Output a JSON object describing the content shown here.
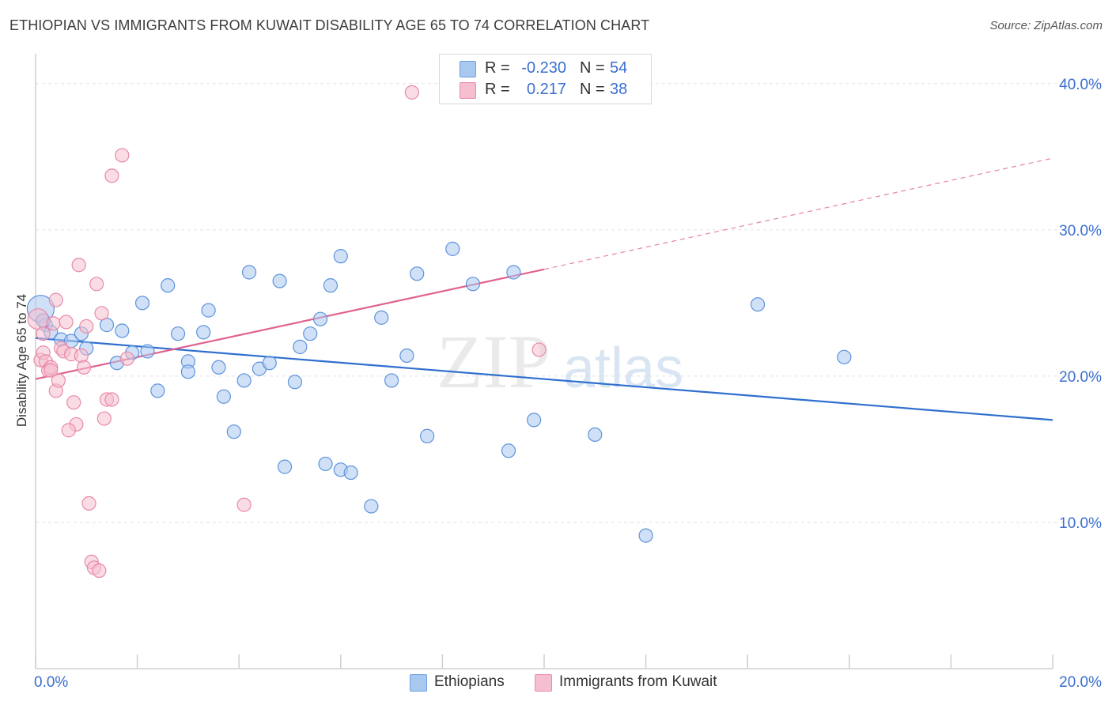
{
  "title": "ETHIOPIAN VS IMMIGRANTS FROM KUWAIT DISABILITY AGE 65 TO 74 CORRELATION CHART",
  "source": "Source: ZipAtlas.com",
  "watermark": {
    "zip": "ZIP",
    "atlas": "atlas"
  },
  "legend": {
    "rows": [
      {
        "r_label": "R =",
        "r_value": "-0.230",
        "n_label": "N =",
        "n_value": "54",
        "color": "#a9c8f0",
        "border": "#6d9fe0"
      },
      {
        "r_label": "R =",
        "r_value": "0.217",
        "n_label": "N =",
        "n_value": "38",
        "color": "#f6bfd0",
        "border": "#e98aa9"
      }
    ]
  },
  "colors": {
    "blue_fill": "#a9c8f0",
    "blue_stroke": "#5e93dc",
    "blue_line": "#2f6fce",
    "pink_fill": "#f6bfd0",
    "pink_stroke": "#e88aa8",
    "pink_line": "#e0628e",
    "tick_label": "#3b6fd0",
    "grid": "#e2e2e2"
  },
  "chart_data": {
    "type": "scatter",
    "title": "ETHIOPIAN VS IMMIGRANTS FROM KUWAIT DISABILITY AGE 65 TO 74 CORRELATION CHART",
    "xlabel": "",
    "ylabel": "Disability Age 65 to 74",
    "xlim": [
      0,
      20
    ],
    "ylim": [
      0,
      41.5
    ],
    "x_tick_labels": [
      "0.0%",
      "20.0%"
    ],
    "y_ticks": [
      10,
      20,
      30,
      40
    ],
    "y_tick_labels": [
      "10.0%",
      "20.0%",
      "30.0%",
      "40.0%"
    ],
    "grid": true,
    "legend_position": "bottom",
    "series": [
      {
        "name": "Ethiopians",
        "points": [
          [
            0.1,
            24.6
          ],
          [
            0.2,
            23.5
          ],
          [
            0.3,
            23.0
          ],
          [
            0.5,
            22.5
          ],
          [
            0.7,
            22.4
          ],
          [
            0.9,
            22.9
          ],
          [
            1.0,
            21.9
          ],
          [
            1.4,
            23.5
          ],
          [
            1.7,
            23.1
          ],
          [
            1.6,
            20.9
          ],
          [
            1.9,
            21.6
          ],
          [
            2.2,
            21.7
          ],
          [
            2.1,
            25.0
          ],
          [
            2.4,
            19.0
          ],
          [
            2.6,
            26.2
          ],
          [
            2.8,
            22.9
          ],
          [
            3.0,
            21.0
          ],
          [
            3.0,
            20.3
          ],
          [
            3.3,
            23.0
          ],
          [
            3.4,
            24.5
          ],
          [
            3.6,
            20.6
          ],
          [
            3.7,
            18.6
          ],
          [
            3.9,
            16.2
          ],
          [
            4.1,
            19.7
          ],
          [
            4.2,
            27.1
          ],
          [
            4.4,
            20.5
          ],
          [
            4.6,
            20.9
          ],
          [
            4.8,
            26.5
          ],
          [
            4.9,
            13.8
          ],
          [
            5.1,
            19.6
          ],
          [
            5.2,
            22.0
          ],
          [
            5.4,
            22.9
          ],
          [
            5.6,
            23.9
          ],
          [
            5.7,
            14.0
          ],
          [
            5.8,
            26.2
          ],
          [
            6.0,
            13.6
          ],
          [
            6.2,
            13.4
          ],
          [
            6.0,
            28.2
          ],
          [
            6.6,
            11.1
          ],
          [
            6.8,
            24.0
          ],
          [
            7.0,
            19.7
          ],
          [
            7.3,
            21.4
          ],
          [
            7.5,
            27.0
          ],
          [
            7.7,
            15.9
          ],
          [
            8.2,
            28.7
          ],
          [
            8.6,
            26.3
          ],
          [
            9.3,
            14.9
          ],
          [
            9.4,
            27.1
          ],
          [
            9.8,
            17.0
          ],
          [
            11.0,
            16.0
          ],
          [
            12.0,
            9.1
          ],
          [
            14.2,
            24.9
          ],
          [
            15.9,
            21.3
          ],
          [
            0.15,
            23.8
          ]
        ],
        "trend": {
          "x": [
            0,
            20
          ],
          "y": [
            22.6,
            17.0
          ]
        }
      },
      {
        "name": "Immigrants from Kuwait",
        "points": [
          [
            0.05,
            23.9
          ],
          [
            0.1,
            21.1
          ],
          [
            0.15,
            21.6
          ],
          [
            0.2,
            21.0
          ],
          [
            0.25,
            20.4
          ],
          [
            0.3,
            20.6
          ],
          [
            0.35,
            23.6
          ],
          [
            0.4,
            25.2
          ],
          [
            0.4,
            19.0
          ],
          [
            0.45,
            19.7
          ],
          [
            0.5,
            21.9
          ],
          [
            0.55,
            21.7
          ],
          [
            0.6,
            23.7
          ],
          [
            0.7,
            21.5
          ],
          [
            0.75,
            18.2
          ],
          [
            0.8,
            16.7
          ],
          [
            0.85,
            27.6
          ],
          [
            0.9,
            21.4
          ],
          [
            0.95,
            20.6
          ],
          [
            1.0,
            23.4
          ],
          [
            1.05,
            11.3
          ],
          [
            1.1,
            7.3
          ],
          [
            1.15,
            6.9
          ],
          [
            1.2,
            26.3
          ],
          [
            1.25,
            6.7
          ],
          [
            1.3,
            24.3
          ],
          [
            1.35,
            17.1
          ],
          [
            1.4,
            18.4
          ],
          [
            1.5,
            33.7
          ],
          [
            1.5,
            18.4
          ],
          [
            1.7,
            35.1
          ],
          [
            1.8,
            21.2
          ],
          [
            0.65,
            16.3
          ],
          [
            4.1,
            11.2
          ],
          [
            7.4,
            39.4
          ],
          [
            9.9,
            21.8
          ],
          [
            0.3,
            20.4
          ],
          [
            0.15,
            22.9
          ]
        ],
        "trend": {
          "x": [
            0,
            10
          ],
          "y": [
            19.8,
            27.3
          ]
        },
        "trend_extension": {
          "x": [
            10,
            20
          ],
          "y": [
            27.3,
            34.9
          ]
        }
      }
    ]
  }
}
